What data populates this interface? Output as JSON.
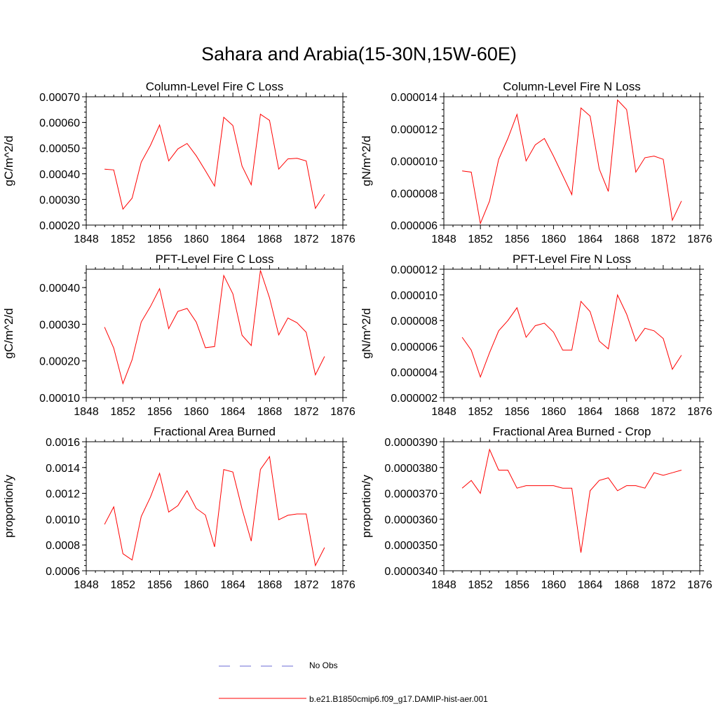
{
  "figure": {
    "title": "Sahara and Arabia(15-30N,15W-60E)"
  },
  "chart_data": [
    {
      "type": "line",
      "title": "Column-Level Fire C Loss",
      "ylabel": "gC/m^2/d",
      "xlim": [
        1848,
        1876
      ],
      "ylim": [
        0.0002,
        0.0007
      ],
      "xticks": [
        1848,
        1852,
        1856,
        1860,
        1864,
        1868,
        1872,
        1876
      ],
      "xtick_labels": [
        "1848",
        "1852",
        "1856",
        "1860",
        "1864",
        "1868",
        "1872",
        "1876"
      ],
      "yticks": [
        0.0002,
        0.0003,
        0.0004,
        0.0005,
        0.0006,
        0.0007
      ],
      "ytick_labels": [
        "0.00020",
        "0.00030",
        "0.00040",
        "0.00050",
        "0.00060",
        "0.00070"
      ],
      "grid": false,
      "series": [
        {
          "color": "#ff0000",
          "x": [
            1850,
            1851,
            1852,
            1853,
            1854,
            1855,
            1856,
            1857,
            1858,
            1859,
            1860,
            1861,
            1862,
            1863,
            1864,
            1865,
            1866,
            1867,
            1868,
            1869,
            1870,
            1871,
            1872,
            1873,
            1874
          ],
          "y": [
            0.000418,
            0.000415,
            0.000262,
            0.000305,
            0.000445,
            0.00051,
            0.00059,
            0.00045,
            0.000497,
            0.000518,
            0.00047,
            0.000412,
            0.000352,
            0.00062,
            0.000588,
            0.00043,
            0.000357,
            0.000632,
            0.000608,
            0.000418,
            0.000458,
            0.00046,
            0.00045,
            0.000265,
            0.00032
          ]
        }
      ]
    },
    {
      "type": "line",
      "title": "Column-Level Fire N Loss",
      "ylabel": "gN/m^2/d",
      "xlim": [
        1848,
        1876
      ],
      "ylim": [
        6e-06,
        1.4e-05
      ],
      "xticks": [
        1848,
        1852,
        1856,
        1860,
        1864,
        1868,
        1872,
        1876
      ],
      "xtick_labels": [
        "1848",
        "1852",
        "1856",
        "1860",
        "1864",
        "1868",
        "1872",
        "1876"
      ],
      "yticks": [
        6e-06,
        8e-06,
        1e-05,
        1.2e-05,
        1.4e-05
      ],
      "ytick_labels": [
        "0.000006",
        "0.000008",
        "0.000010",
        "0.000012",
        "0.000014"
      ],
      "grid": false,
      "series": [
        {
          "color": "#ff0000",
          "x": [
            1850,
            1851,
            1852,
            1853,
            1854,
            1855,
            1856,
            1857,
            1858,
            1859,
            1860,
            1861,
            1862,
            1863,
            1864,
            1865,
            1866,
            1867,
            1868,
            1869,
            1870,
            1871,
            1872,
            1873,
            1874
          ],
          "y": [
            9.38e-06,
            9.3e-06,
            6.1e-06,
            7.5e-06,
            1.01e-05,
            1.14e-05,
            1.29e-05,
            1e-05,
            1.1e-05,
            1.14e-05,
            1.03e-05,
            9.1e-06,
            7.9e-06,
            1.33e-05,
            1.28e-05,
            9.5e-06,
            8.1e-06,
            1.38e-05,
            1.32e-05,
            9.3e-06,
            1.02e-05,
            1.03e-05,
            1.01e-05,
            6.3e-06,
            7.5e-06
          ]
        }
      ]
    },
    {
      "type": "line",
      "title": "PFT-Level Fire C Loss",
      "ylabel": "gC/m^2/d",
      "xlim": [
        1848,
        1876
      ],
      "ylim": [
        0.0001,
        0.00045
      ],
      "xticks": [
        1848,
        1852,
        1856,
        1860,
        1864,
        1868,
        1872,
        1876
      ],
      "xtick_labels": [
        "1848",
        "1852",
        "1856",
        "1860",
        "1864",
        "1868",
        "1872",
        "1876"
      ],
      "yticks": [
        0.0001,
        0.0002,
        0.0003,
        0.0004
      ],
      "ytick_labels": [
        "0.00010",
        "0.00020",
        "0.00030",
        "0.00040"
      ],
      "grid": false,
      "series": [
        {
          "color": "#ff0000",
          "x": [
            1850,
            1851,
            1852,
            1853,
            1854,
            1855,
            1856,
            1857,
            1858,
            1859,
            1860,
            1861,
            1862,
            1863,
            1864,
            1865,
            1866,
            1867,
            1868,
            1869,
            1870,
            1871,
            1872,
            1873,
            1874
          ],
          "y": [
            0.000292,
            0.000235,
            0.000138,
            0.000203,
            0.000306,
            0.000348,
            0.000397,
            0.000288,
            0.000335,
            0.000343,
            0.000306,
            0.000236,
            0.000239,
            0.000433,
            0.000383,
            0.00027,
            0.000242,
            0.000447,
            0.000372,
            0.000271,
            0.000317,
            0.000304,
            0.000278,
            0.000162,
            0.000212
          ]
        }
      ]
    },
    {
      "type": "line",
      "title": "PFT-Level Fire N Loss",
      "ylabel": "gN/m^2/d",
      "xlim": [
        1848,
        1876
      ],
      "ylim": [
        2e-06,
        1.2e-05
      ],
      "xticks": [
        1848,
        1852,
        1856,
        1860,
        1864,
        1868,
        1872,
        1876
      ],
      "xtick_labels": [
        "1848",
        "1852",
        "1856",
        "1860",
        "1864",
        "1868",
        "1872",
        "1876"
      ],
      "yticks": [
        2e-06,
        4e-06,
        6e-06,
        8e-06,
        1e-05,
        1.2e-05
      ],
      "ytick_labels": [
        "0.000002",
        "0.000004",
        "0.000006",
        "0.000008",
        "0.000010",
        "0.000012"
      ],
      "grid": false,
      "series": [
        {
          "color": "#ff0000",
          "x": [
            1850,
            1851,
            1852,
            1853,
            1854,
            1855,
            1856,
            1857,
            1858,
            1859,
            1860,
            1861,
            1862,
            1863,
            1864,
            1865,
            1866,
            1867,
            1868,
            1869,
            1870,
            1871,
            1872,
            1873,
            1874
          ],
          "y": [
            6.7e-06,
            5.7e-06,
            3.6e-06,
            5.5e-06,
            7.2e-06,
            8e-06,
            9e-06,
            6.7e-06,
            7.6e-06,
            7.8e-06,
            7.1e-06,
            5.7e-06,
            5.7e-06,
            9.5e-06,
            8.7e-06,
            6.4e-06,
            5.8e-06,
            1e-05,
            8.5e-06,
            6.4e-06,
            7.4e-06,
            7.2e-06,
            6.6e-06,
            4.2e-06,
            5.3e-06
          ]
        }
      ]
    },
    {
      "type": "line",
      "title": "Fractional Area Burned",
      "ylabel": "proportion/y",
      "xlim": [
        1848,
        1876
      ],
      "ylim": [
        0.0006,
        0.0016
      ],
      "xticks": [
        1848,
        1852,
        1856,
        1860,
        1864,
        1868,
        1872,
        1876
      ],
      "xtick_labels": [
        "1848",
        "1852",
        "1856",
        "1860",
        "1864",
        "1868",
        "1872",
        "1876"
      ],
      "yticks": [
        0.0006,
        0.0008,
        0.001,
        0.0012,
        0.0014,
        0.0016
      ],
      "ytick_labels": [
        "0.0006",
        "0.0008",
        "0.0010",
        "0.0012",
        "0.0014",
        "0.0016"
      ],
      "grid": false,
      "series": [
        {
          "color": "#ff0000",
          "x": [
            1850,
            1851,
            1852,
            1853,
            1854,
            1855,
            1856,
            1857,
            1858,
            1859,
            1860,
            1861,
            1862,
            1863,
            1864,
            1865,
            1866,
            1867,
            1868,
            1869,
            1870,
            1871,
            1872,
            1873,
            1874
          ],
          "y": [
            0.00096,
            0.001095,
            0.000732,
            0.000683,
            0.00102,
            0.00117,
            0.001355,
            0.001055,
            0.001105,
            0.00122,
            0.001083,
            0.001032,
            0.000785,
            0.001385,
            0.001365,
            0.00108,
            0.00083,
            0.001385,
            0.001485,
            0.000995,
            0.00103,
            0.00104,
            0.00104,
            0.00064,
            0.00078
          ]
        }
      ]
    },
    {
      "type": "line",
      "title": "Fractional Area Burned - Crop",
      "ylabel": "proportion/y",
      "xlim": [
        1848,
        1876
      ],
      "ylim": [
        3.4e-05,
        3.9e-05
      ],
      "xticks": [
        1848,
        1852,
        1856,
        1860,
        1864,
        1868,
        1872,
        1876
      ],
      "xtick_labels": [
        "1848",
        "1852",
        "1856",
        "1860",
        "1864",
        "1868",
        "1872",
        "1876"
      ],
      "yticks": [
        3.4e-05,
        3.5e-05,
        3.6e-05,
        3.7e-05,
        3.8e-05,
        3.9e-05
      ],
      "ytick_labels": [
        "0.0000340",
        "0.0000350",
        "0.0000360",
        "0.0000370",
        "0.0000380",
        "0.0000390"
      ],
      "grid": false,
      "series": [
        {
          "color": "#ff0000",
          "x": [
            1850,
            1851,
            1852,
            1853,
            1854,
            1855,
            1856,
            1857,
            1858,
            1859,
            1860,
            1861,
            1862,
            1863,
            1864,
            1865,
            1866,
            1867,
            1868,
            1869,
            1870,
            1871,
            1872,
            1873,
            1874
          ],
          "y": [
            3.72e-05,
            3.75e-05,
            3.7e-05,
            3.87e-05,
            3.79e-05,
            3.79e-05,
            3.72e-05,
            3.73e-05,
            3.73e-05,
            3.73e-05,
            3.73e-05,
            3.72e-05,
            3.72e-05,
            3.47e-05,
            3.71e-05,
            3.75e-05,
            3.76e-05,
            3.71e-05,
            3.73e-05,
            3.73e-05,
            3.72e-05,
            3.78e-05,
            3.77e-05,
            3.78e-05,
            3.79e-05
          ]
        }
      ]
    }
  ],
  "legend": {
    "items": [
      {
        "label": "No Obs",
        "color": "#6b6bd6",
        "style": "dashed"
      },
      {
        "label": "b.e21.B1850cmip6.f09_g17.DAMIP-hist-aer.001",
        "color": "#ff0000",
        "style": "solid"
      }
    ]
  }
}
